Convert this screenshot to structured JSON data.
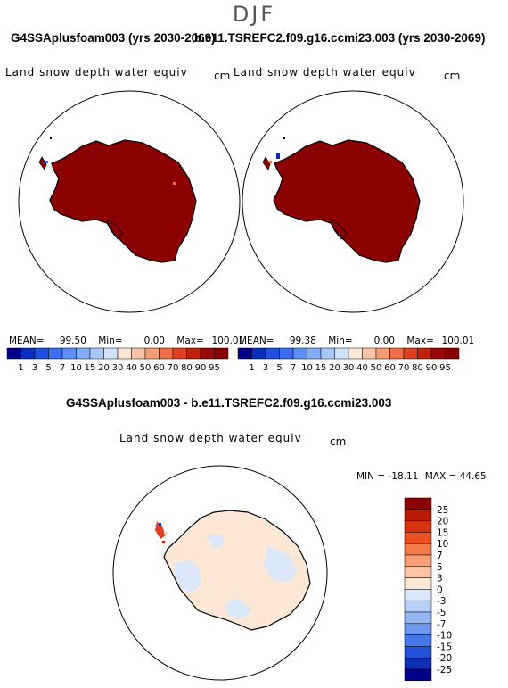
{
  "season": "DJF",
  "panels": [
    {
      "title": "G4SSAplusfoam003 (yrs 2030-2069)",
      "variable": "Land snow depth water equiv",
      "units": "cm",
      "mean": "99.50",
      "min": "0.00",
      "max": "100.01"
    },
    {
      "title": "b.e11.TSREFC2.f09.g16.ccmi23.003 (yrs 2030-2069)",
      "variable": "Land snow depth water equiv",
      "units": "cm",
      "mean": "99.38",
      "min": "0.00",
      "max": "100.01"
    }
  ],
  "stat_labels": {
    "mean": "MEAN=",
    "min": "Min=",
    "max": "Max="
  },
  "diff_panel": {
    "title": "G4SSAplusfoam003 - b.e11.TSREFC2.f09.g16.ccmi23.003",
    "variable": "Land snow depth water equiv",
    "units": "cm",
    "min_label": "MIN =",
    "min": "-18.11",
    "max_label": "MAX =",
    "max": "44.65"
  },
  "chart_data": [
    {
      "type": "heatmap",
      "title": "G4SSAplusfoam003 (yrs 2030-2069)",
      "variable": "Land snow depth water equiv",
      "units": "cm",
      "region": "Antarctica",
      "mean": 99.5,
      "min": 0.0,
      "max": 100.01,
      "colorbar": {
        "levels": [
          "1",
          "3",
          "5",
          "7",
          "10",
          "15",
          "20",
          "30",
          "40",
          "50",
          "60",
          "70",
          "80",
          "90",
          "95"
        ],
        "colors": [
          "#00008b",
          "#0a2fc0",
          "#1f4fe0",
          "#3b6ff0",
          "#5c8ef5",
          "#80acf8",
          "#a6c8fb",
          "#cfe2fb",
          "#fde6d5",
          "#f9c4a6",
          "#f59b72",
          "#ee6e45",
          "#e0401f",
          "#c0200e",
          "#990808",
          "#8b0000"
        ]
      }
    },
    {
      "type": "heatmap",
      "title": "b.e11.TSREFC2.f09.g16.ccmi23.003 (yrs 2030-2069)",
      "variable": "Land snow depth water equiv",
      "units": "cm",
      "region": "Antarctica",
      "mean": 99.38,
      "min": 0.0,
      "max": 100.01,
      "colorbar": {
        "levels": [
          "1",
          "3",
          "5",
          "7",
          "10",
          "15",
          "20",
          "30",
          "40",
          "50",
          "60",
          "70",
          "80",
          "90",
          "95"
        ],
        "colors": [
          "#00008b",
          "#0a2fc0",
          "#1f4fe0",
          "#3b6ff0",
          "#5c8ef5",
          "#80acf8",
          "#a6c8fb",
          "#cfe2fb",
          "#fde6d5",
          "#f9c4a6",
          "#f59b72",
          "#ee6e45",
          "#e0401f",
          "#c0200e",
          "#990808",
          "#8b0000"
        ]
      }
    },
    {
      "type": "heatmap",
      "title": "G4SSAplusfoam003 - b.e11.TSREFC2.f09.g16.ccmi23.003",
      "variable": "Land snow depth water equiv",
      "units": "cm",
      "region": "Antarctica",
      "min": -18.11,
      "max": 44.65,
      "colorbar": {
        "levels": [
          "25",
          "20",
          "15",
          "10",
          "7",
          "5",
          "3",
          "0",
          "-3",
          "-5",
          "-7",
          "-10",
          "-15",
          "-20",
          "-25"
        ],
        "colors": [
          "#8b0000",
          "#b81a08",
          "#d83310",
          "#ee5020",
          "#f57a48",
          "#fa9f76",
          "#fcc5a6",
          "#fde8d6",
          "#dce8fa",
          "#b8d0f8",
          "#95b6f5",
          "#6e97f0",
          "#4677e8",
          "#2552d8",
          "#0f2fb5",
          "#00008b"
        ]
      }
    }
  ]
}
